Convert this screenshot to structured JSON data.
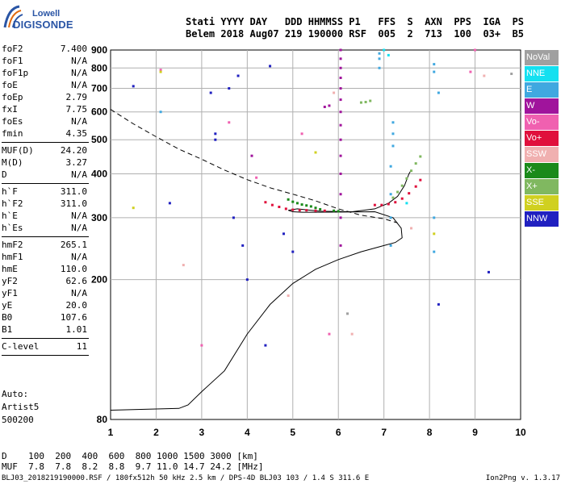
{
  "logo": {
    "line1": "Lowell",
    "line2": "DIGISONDE"
  },
  "header": {
    "line1": "Stati YYYY DAY   DDD HHMMSS P1   FFS  S  AXN  PPS  IGA  PS",
    "line2": "Belem 2018 Aug07 219 190000 RSF  005  2  713  100  03+  B5"
  },
  "params": [
    {
      "k": "foF2",
      "v": "7.400"
    },
    {
      "k": "foF1",
      "v": "N/A"
    },
    {
      "k": "foF1p",
      "v": "N/A"
    },
    {
      "k": "foE",
      "v": "N/A"
    },
    {
      "k": "foEp",
      "v": "2.79"
    },
    {
      "k": "fxI",
      "v": "7.75"
    },
    {
      "k": "foEs",
      "v": "N/A"
    },
    {
      "k": "fmin",
      "v": "4.35"
    }
  ],
  "params2": [
    {
      "k": "MUF(D)",
      "v": "24.20"
    },
    {
      "k": "M(D)",
      "v": "3.27"
    },
    {
      "k": "D",
      "v": "N/A"
    }
  ],
  "params3": [
    {
      "k": "h`F",
      "v": "311.0"
    },
    {
      "k": "h`F2",
      "v": "311.0"
    },
    {
      "k": "h`E",
      "v": "N/A"
    },
    {
      "k": "h`Es",
      "v": "N/A"
    }
  ],
  "params4": [
    {
      "k": "hmF2",
      "v": "265.1"
    },
    {
      "k": "hmF1",
      "v": "N/A"
    },
    {
      "k": "hmE",
      "v": "110.0"
    },
    {
      "k": "yF2",
      "v": "62.6"
    },
    {
      "k": "yF1",
      "v": "N/A"
    },
    {
      "k": "yE",
      "v": "20.0"
    },
    {
      "k": "B0",
      "v": "107.6"
    },
    {
      "k": "B1",
      "v": "1.01"
    }
  ],
  "params5": [
    {
      "k": "C-level",
      "v": "11"
    }
  ],
  "auto": {
    "line1": "Auto:",
    "line2": "Artist5",
    "line3": "500200"
  },
  "legend": [
    {
      "label": "NoVal",
      "color": "#a0a0a0"
    },
    {
      "label": "NNE",
      "color": "#14e0f0"
    },
    {
      "label": "E",
      "color": "#40a8e0"
    },
    {
      "label": "W",
      "color": "#a0149c"
    },
    {
      "label": "Vo-",
      "color": "#f060b0"
    },
    {
      "label": "Vo+",
      "color": "#e0103c"
    },
    {
      "label": "SSW",
      "color": "#f0b0b0"
    },
    {
      "label": "X-",
      "color": "#1a8a1a"
    },
    {
      "label": "X+",
      "color": "#80b860"
    },
    {
      "label": "SSE",
      "color": "#d0d020"
    },
    {
      "label": "NNW",
      "color": "#2020c0"
    }
  ],
  "bottom": {
    "d_row": "D    100  200  400  600  800 1000 1500 3000 [km]",
    "muf_row": "MUF  7.8  7.8  8.2  8.8  9.7 11.0 14.7 24.2 [MHz]"
  },
  "footer": {
    "left": "BLJ03_2018219190000.RSF / 180fx512h 50 kHz 2.5 km / DPS-4D BLJ03 103 / 1.4 S 311.6 E",
    "right": "Ion2Png v. 1.3.17"
  },
  "chart_data": {
    "type": "scatter",
    "title": "",
    "xlabel": "",
    "ylabel": "",
    "xlim": [
      1,
      10
    ],
    "ylim": [
      80,
      900
    ],
    "y_scale": "log",
    "x_ticks": [
      1,
      2,
      3,
      4,
      5,
      6,
      7,
      8,
      9,
      10
    ],
    "y_ticks": [
      80,
      200,
      300,
      400,
      500,
      600,
      700,
      800,
      900
    ],
    "grid": true,
    "legend_position": "right",
    "series": [
      {
        "name": "Vo+",
        "color": "#e0103c",
        "points": [
          [
            4.4,
            332
          ],
          [
            4.55,
            326
          ],
          [
            4.7,
            322
          ],
          [
            4.85,
            318
          ],
          [
            5.0,
            316
          ],
          [
            5.15,
            315
          ],
          [
            5.3,
            315
          ],
          [
            5.5,
            314
          ],
          [
            5.7,
            314
          ],
          [
            6.8,
            326
          ],
          [
            6.95,
            326
          ],
          [
            7.1,
            328
          ],
          [
            7.25,
            332
          ],
          [
            7.4,
            340
          ],
          [
            7.55,
            352
          ],
          [
            7.7,
            368
          ],
          [
            7.8,
            384
          ]
        ]
      },
      {
        "name": "X+",
        "color": "#80b860",
        "points": [
          [
            6.5,
            638
          ],
          [
            6.6,
            640
          ],
          [
            6.7,
            645
          ],
          [
            7.2,
            342
          ],
          [
            7.3,
            355
          ],
          [
            7.4,
            370
          ],
          [
            7.5,
            388
          ],
          [
            7.6,
            408
          ],
          [
            7.7,
            428
          ],
          [
            7.8,
            448
          ]
        ]
      },
      {
        "name": "X-",
        "color": "#1a8a1a",
        "points": [
          [
            4.9,
            338
          ],
          [
            5.0,
            333
          ],
          [
            5.1,
            330
          ],
          [
            5.2,
            327
          ],
          [
            5.3,
            325
          ],
          [
            5.4,
            323
          ],
          [
            5.5,
            320
          ],
          [
            5.6,
            317
          ],
          [
            5.9,
            314
          ],
          [
            6.0,
            313
          ]
        ]
      },
      {
        "name": "W",
        "color": "#a0149c",
        "points": [
          [
            6.05,
            250
          ],
          [
            6.05,
            300
          ],
          [
            6.05,
            350
          ],
          [
            6.05,
            400
          ],
          [
            6.05,
            450
          ],
          [
            6.05,
            500
          ],
          [
            6.05,
            550
          ],
          [
            6.05,
            600
          ],
          [
            6.05,
            650
          ],
          [
            6.05,
            700
          ],
          [
            6.05,
            750
          ],
          [
            6.05,
            800
          ],
          [
            6.05,
            850
          ],
          [
            6.05,
            900
          ],
          [
            4.1,
            450
          ],
          [
            5.7,
            620
          ],
          [
            5.8,
            625
          ]
        ]
      },
      {
        "name": "E",
        "color": "#40a8e0",
        "points": [
          [
            7.15,
            250
          ],
          [
            7.15,
            300
          ],
          [
            7.15,
            350
          ],
          [
            7.15,
            420
          ],
          [
            7.2,
            480
          ],
          [
            7.2,
            520
          ],
          [
            7.2,
            560
          ],
          [
            6.9,
            800
          ],
          [
            6.9,
            850
          ],
          [
            6.9,
            880
          ],
          [
            8.1,
            240
          ],
          [
            8.1,
            300
          ],
          [
            8.2,
            680
          ],
          [
            8.1,
            780
          ],
          [
            8.1,
            820
          ],
          [
            2.1,
            600
          ]
        ]
      },
      {
        "name": "NNW",
        "color": "#2020c0",
        "points": [
          [
            1.5,
            710
          ],
          [
            2.3,
            330
          ],
          [
            3.2,
            680
          ],
          [
            3.3,
            500
          ],
          [
            3.3,
            520
          ],
          [
            3.6,
            700
          ],
          [
            3.7,
            300
          ],
          [
            3.8,
            760
          ],
          [
            3.9,
            250
          ],
          [
            4.0,
            200
          ],
          [
            4.4,
            130
          ],
          [
            4.5,
            810
          ],
          [
            4.8,
            270
          ],
          [
            5.0,
            240
          ],
          [
            8.2,
            170
          ],
          [
            9.3,
            210
          ]
        ]
      },
      {
        "name": "Vo-",
        "color": "#f060b0",
        "points": [
          [
            2.1,
            790
          ],
          [
            3.0,
            130
          ],
          [
            3.6,
            560
          ],
          [
            4.2,
            390
          ],
          [
            5.2,
            520
          ],
          [
            8.9,
            780
          ],
          [
            9.0,
            900
          ],
          [
            5.8,
            140
          ]
        ]
      },
      {
        "name": "SSW",
        "color": "#f0b0b0",
        "points": [
          [
            2.6,
            220
          ],
          [
            4.9,
            180
          ],
          [
            5.9,
            680
          ],
          [
            6.3,
            140
          ],
          [
            7.6,
            280
          ],
          [
            9.2,
            760
          ]
        ]
      },
      {
        "name": "SSE",
        "color": "#d0d020",
        "points": [
          [
            1.5,
            320
          ],
          [
            2.1,
            780
          ],
          [
            5.5,
            460
          ],
          [
            8.1,
            270
          ]
        ]
      },
      {
        "name": "NNE",
        "color": "#14e0f0",
        "points": [
          [
            7.0,
            900
          ],
          [
            7.1,
            870
          ],
          [
            7.5,
            330
          ]
        ]
      },
      {
        "name": "NoVal",
        "color": "#a0a0a0",
        "points": [
          [
            6.2,
            160
          ],
          [
            9.8,
            770
          ]
        ]
      }
    ],
    "profile_solid": [
      [
        1.0,
        85
      ],
      [
        2.5,
        86
      ],
      [
        2.7,
        88
      ],
      [
        3.0,
        96
      ],
      [
        3.5,
        110
      ],
      [
        4.0,
        140
      ],
      [
        4.5,
        170
      ],
      [
        5.0,
        195
      ],
      [
        5.5,
        214
      ],
      [
        6.0,
        228
      ],
      [
        6.5,
        240
      ],
      [
        7.0,
        250
      ],
      [
        7.25,
        255
      ],
      [
        7.4,
        263
      ],
      [
        7.38,
        280
      ],
      [
        7.2,
        300
      ],
      [
        6.8,
        312
      ],
      [
        5.5,
        311
      ],
      [
        5.2,
        311
      ],
      [
        5.0,
        312
      ],
      [
        4.9,
        315
      ],
      [
        5.1,
        318
      ],
      [
        5.6,
        313
      ],
      [
        6.3,
        312
      ],
      [
        6.8,
        318
      ],
      [
        7.1,
        330
      ],
      [
        7.3,
        345
      ],
      [
        7.45,
        370
      ],
      [
        7.55,
        400
      ],
      [
        7.6,
        410
      ]
    ],
    "profile_dashed": [
      [
        1.0,
        610
      ],
      [
        1.5,
        555
      ],
      [
        2.0,
        510
      ],
      [
        2.5,
        470
      ],
      [
        3.0,
        440
      ],
      [
        3.5,
        410
      ],
      [
        4.0,
        385
      ],
      [
        4.5,
        365
      ],
      [
        5.0,
        350
      ],
      [
        5.5,
        335
      ],
      [
        6.0,
        318
      ],
      [
        6.5,
        305
      ],
      [
        7.0,
        298
      ],
      [
        7.3,
        290
      ]
    ]
  }
}
